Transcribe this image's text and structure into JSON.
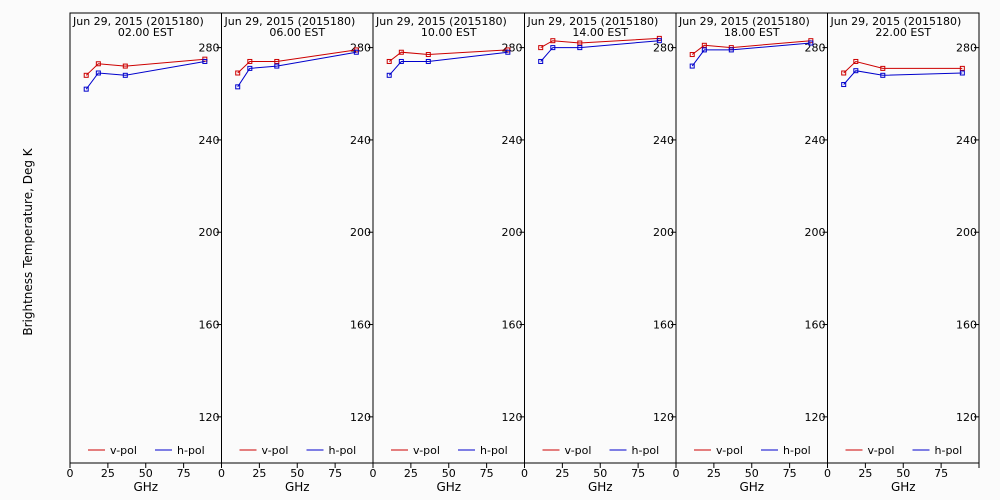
{
  "figure": {
    "ylabel": "Brightness Temperature, Deg K",
    "xlabel": "GHz",
    "background": "#fbfbfb"
  },
  "legend": {
    "vpol": "v-pol",
    "hpol": "h-pol"
  },
  "chart_data": [
    {
      "type": "line",
      "title": "Jun 29, 2015 (2015180)",
      "subtitle": "02.00 EST",
      "xlabel": "GHz",
      "ylabel": "Brightness Temperature, Deg K",
      "xlim": [
        0,
        100
      ],
      "ylim": [
        100,
        295
      ],
      "xticks": [
        0,
        25,
        50,
        75
      ],
      "yticks": [
        120,
        160,
        200,
        240,
        280
      ],
      "x": [
        10.7,
        18.7,
        36.5,
        89.0
      ],
      "series": [
        {
          "name": "v-pol",
          "color": "#cc0000",
          "values": [
            268,
            273,
            272,
            275
          ]
        },
        {
          "name": "h-pol",
          "color": "#0000cc",
          "values": [
            262,
            269,
            268,
            274
          ]
        }
      ]
    },
    {
      "type": "line",
      "title": "Jun 29, 2015 (2015180)",
      "subtitle": "06.00 EST",
      "xlabel": "GHz",
      "ylabel": "Brightness Temperature, Deg K",
      "xlim": [
        0,
        100
      ],
      "ylim": [
        100,
        295
      ],
      "xticks": [
        0,
        25,
        50,
        75
      ],
      "yticks": [
        120,
        160,
        200,
        240,
        280
      ],
      "x": [
        10.7,
        18.7,
        36.5,
        89.0
      ],
      "series": [
        {
          "name": "v-pol",
          "color": "#cc0000",
          "values": [
            269,
            274,
            274,
            279
          ]
        },
        {
          "name": "h-pol",
          "color": "#0000cc",
          "values": [
            263,
            271,
            272,
            278
          ]
        }
      ]
    },
    {
      "type": "line",
      "title": "Jun 29, 2015 (2015180)",
      "subtitle": "10.00 EST",
      "xlabel": "GHz",
      "ylabel": "Brightness Temperature, Deg K",
      "xlim": [
        0,
        100
      ],
      "ylim": [
        100,
        295
      ],
      "xticks": [
        0,
        25,
        50,
        75
      ],
      "yticks": [
        120,
        160,
        200,
        240,
        280
      ],
      "x": [
        10.7,
        18.7,
        36.5,
        89.0
      ],
      "series": [
        {
          "name": "v-pol",
          "color": "#cc0000",
          "values": [
            274,
            278,
            277,
            279
          ]
        },
        {
          "name": "h-pol",
          "color": "#0000cc",
          "values": [
            268,
            274,
            274,
            278
          ]
        }
      ]
    },
    {
      "type": "line",
      "title": "Jun 29, 2015 (2015180)",
      "subtitle": "14.00 EST",
      "xlabel": "GHz",
      "ylabel": "Brightness Temperature, Deg K",
      "xlim": [
        0,
        100
      ],
      "ylim": [
        100,
        295
      ],
      "xticks": [
        0,
        25,
        50,
        75
      ],
      "yticks": [
        120,
        160,
        200,
        240,
        280
      ],
      "x": [
        10.7,
        18.7,
        36.5,
        89.0
      ],
      "series": [
        {
          "name": "v-pol",
          "color": "#cc0000",
          "values": [
            280,
            283,
            282,
            284
          ]
        },
        {
          "name": "h-pol",
          "color": "#0000cc",
          "values": [
            274,
            280,
            280,
            283
          ]
        }
      ]
    },
    {
      "type": "line",
      "title": "Jun 29, 2015 (2015180)",
      "subtitle": "18.00 EST",
      "xlabel": "GHz",
      "ylabel": "Brightness Temperature, Deg K",
      "xlim": [
        0,
        100
      ],
      "ylim": [
        100,
        295
      ],
      "xticks": [
        0,
        25,
        50,
        75
      ],
      "yticks": [
        120,
        160,
        200,
        240,
        280
      ],
      "x": [
        10.7,
        18.7,
        36.5,
        89.0
      ],
      "series": [
        {
          "name": "v-pol",
          "color": "#cc0000",
          "values": [
            277,
            281,
            280,
            283
          ]
        },
        {
          "name": "h-pol",
          "color": "#0000cc",
          "values": [
            272,
            279,
            279,
            282
          ]
        }
      ]
    },
    {
      "type": "line",
      "title": "Jun 29, 2015 (2015180)",
      "subtitle": "22.00 EST",
      "xlabel": "GHz",
      "ylabel": "Brightness Temperature, Deg K",
      "xlim": [
        0,
        100
      ],
      "ylim": [
        100,
        295
      ],
      "xticks": [
        0,
        25,
        50,
        75
      ],
      "yticks": [
        120,
        160,
        200,
        240,
        280
      ],
      "x": [
        10.7,
        18.7,
        36.5,
        89.0
      ],
      "series": [
        {
          "name": "v-pol",
          "color": "#cc0000",
          "values": [
            269,
            274,
            271,
            271
          ]
        },
        {
          "name": "h-pol",
          "color": "#0000cc",
          "values": [
            264,
            270,
            268,
            269
          ]
        }
      ]
    }
  ]
}
